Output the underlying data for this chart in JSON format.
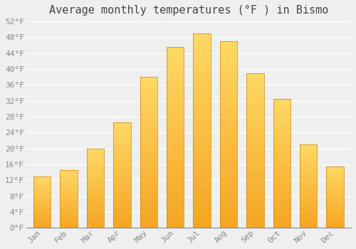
{
  "title": "Average monthly temperatures (°F ) in Bismo",
  "months": [
    "Jan",
    "Feb",
    "Mar",
    "Apr",
    "May",
    "Jun",
    "Jul",
    "Aug",
    "Sep",
    "Oct",
    "Nov",
    "Dec"
  ],
  "values": [
    13,
    14.5,
    20,
    26.5,
    38,
    45.5,
    49,
    47,
    39,
    32.5,
    21,
    15.5
  ],
  "bar_color_main": "#FDB827",
  "bar_color_top": "#FFD966",
  "bar_color_bottom": "#F5A623",
  "bar_edge_color": "#C8860A",
  "ylim": [
    0,
    52
  ],
  "yticks": [
    0,
    4,
    8,
    12,
    16,
    20,
    24,
    28,
    32,
    36,
    40,
    44,
    48,
    52
  ],
  "ytick_labels": [
    "0°F",
    "4°F",
    "8°F",
    "12°F",
    "16°F",
    "20°F",
    "24°F",
    "28°F",
    "32°F",
    "36°F",
    "40°F",
    "44°F",
    "48°F",
    "52°F"
  ],
  "background_color": "#EFEFEF",
  "grid_color": "#FFFFFF",
  "title_fontsize": 11,
  "tick_fontsize": 8,
  "tick_color": "#888888",
  "title_color": "#444444"
}
